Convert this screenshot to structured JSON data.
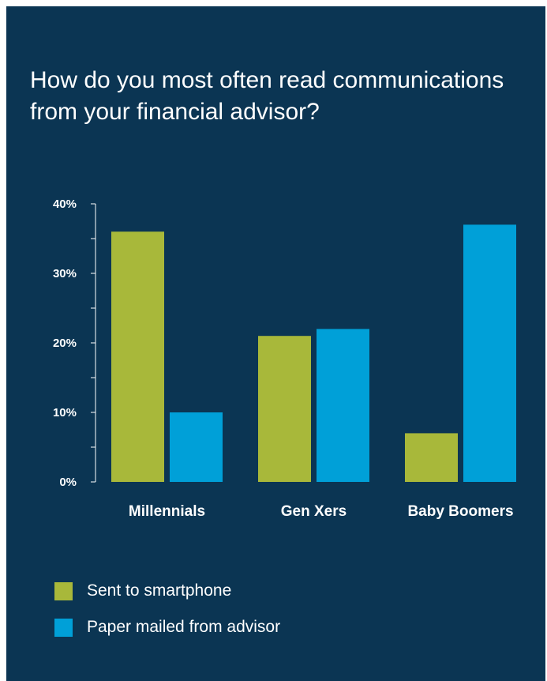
{
  "colors": {
    "background": "#0b3553",
    "smartphone": "#a8b83a",
    "paper": "#00a0d8",
    "text": "#ffffff"
  },
  "chart_data": {
    "type": "bar",
    "title": "How do you most often read communications from your financial advisor?",
    "categories": [
      "Millennials",
      "Gen Xers",
      "Baby Boomers"
    ],
    "series": [
      {
        "name": "Sent to smartphone",
        "values": [
          36,
          21,
          7
        ]
      },
      {
        "name": "Paper mailed from advisor",
        "values": [
          10,
          22,
          37
        ]
      }
    ],
    "yticks": [
      "0%",
      "10%",
      "20%",
      "30%",
      "40%"
    ],
    "ylim": [
      0,
      40
    ],
    "grid": false,
    "legend": "bottom-left"
  }
}
